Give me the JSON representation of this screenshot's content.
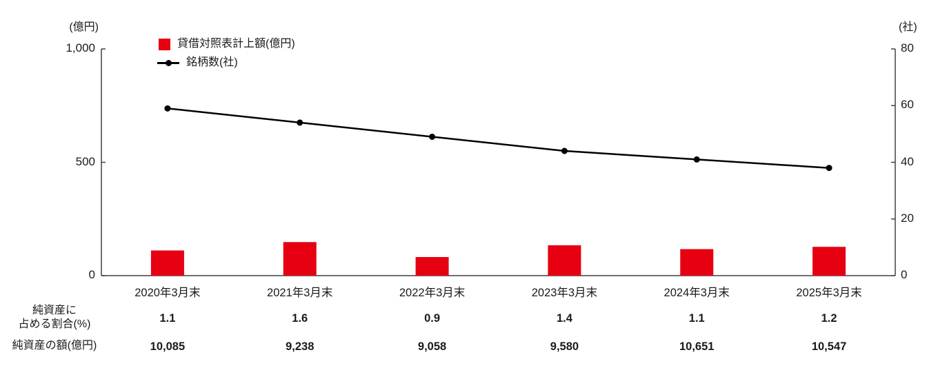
{
  "chart_data": {
    "type": "bar+line",
    "title": "",
    "categories": [
      "2020年3月末",
      "2021年3月末",
      "2022年3月末",
      "2023年3月末",
      "2024年3月末",
      "2025年3月末"
    ],
    "series": [
      {
        "name": "貸借対照表計上額(億円)",
        "type": "bar",
        "axis": "left",
        "color": "#e60012",
        "values": [
          111,
          148,
          82,
          134,
          117,
          127
        ]
      },
      {
        "name": "銘柄数(社)",
        "type": "line",
        "axis": "right",
        "color": "#000000",
        "values": [
          59,
          54,
          49,
          44,
          41,
          38
        ]
      }
    ],
    "left_axis": {
      "unit": "(億円)",
      "min": 0,
      "max": 1000,
      "ticks": [
        0,
        500,
        1000
      ],
      "tick_labels": [
        "0",
        "500",
        "1,000"
      ]
    },
    "right_axis": {
      "unit": "(社)",
      "min": 0,
      "max": 80,
      "ticks": [
        0,
        20,
        40,
        60,
        80
      ],
      "tick_labels": [
        "0",
        "20",
        "40",
        "60",
        "80"
      ]
    },
    "grid": false,
    "legend_position": "top-left-inside"
  },
  "table": {
    "rows": [
      {
        "label_lines": [
          "純資産に",
          "占める割合(%)"
        ],
        "values": [
          "1.1",
          "1.6",
          "0.9",
          "1.4",
          "1.1",
          "1.2"
        ]
      },
      {
        "label_lines": [
          "純資産の額(億円)",
          ""
        ],
        "values": [
          "10,085",
          "9,238",
          "9,058",
          "9,580",
          "10,651",
          "10,547"
        ]
      }
    ]
  },
  "colors": {
    "bar": "#e60012",
    "line": "#000000",
    "axis": "#404040",
    "text": "#1a1a1a"
  }
}
